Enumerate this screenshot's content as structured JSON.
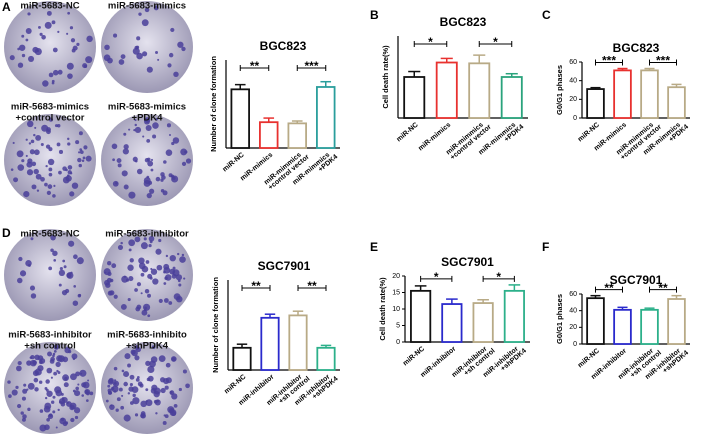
{
  "panels": [
    "A",
    "B",
    "C",
    "D",
    "E",
    "F"
  ],
  "photos": [
    {
      "labels": [
        "miR-5683-NC"
      ]
    },
    {
      "labels": [
        "miR-5683-mimics"
      ]
    },
    {
      "labels": [
        "miR-5683-mimics",
        "+control vector"
      ]
    },
    {
      "labels": [
        "miR-5683-mimics",
        "+PDK4"
      ]
    },
    {
      "labels": [
        "miR-5683-NC"
      ]
    },
    {
      "labels": [
        "miR-5683-inhibitor"
      ]
    },
    {
      "labels": [
        "miR-5683-inhibitor",
        "+sh control"
      ]
    },
    {
      "labels": [
        "miR-5683-inhibito",
        "+shPDK4"
      ]
    }
  ],
  "chart_data": [
    {
      "type": "bar",
      "title": "BGC823",
      "ylabel": "Number of clone formation",
      "categories": [
        [
          "miR-NC"
        ],
        [
          "miR-mimics"
        ],
        [
          "miR-mimmics",
          "+control vector"
        ],
        [
          "miR-mimmics",
          "+PDK4"
        ]
      ],
      "values": [
        100,
        44,
        42,
        104
      ],
      "errors": [
        8,
        7,
        4,
        9
      ],
      "colors": [
        "#111111",
        "#e8312f",
        "#b8aa86",
        "#2a9e9c"
      ],
      "ylim": [
        0,
        150
      ],
      "annotations": [
        "**",
        "***"
      ]
    },
    {
      "type": "bar",
      "title": "BGC823",
      "ylabel": "Cell death rate(%)",
      "categories": [
        [
          "miR-NC"
        ],
        [
          "miR-mimics"
        ],
        [
          "miR-mimmics",
          "+control vector"
        ],
        [
          "miR-mimmics",
          "+PDK4"
        ]
      ],
      "values": [
        15,
        20.3,
        20,
        15
      ],
      "errors": [
        2,
        1.5,
        3,
        1.2
      ],
      "colors": [
        "#111111",
        "#e8312f",
        "#b8aa86",
        "#2aa37c"
      ],
      "ylim": [
        0,
        30
      ],
      "annotations": [
        "*",
        "*"
      ]
    },
    {
      "type": "bar",
      "title": "BGC823",
      "ylabel": "G0/G1 phases",
      "categories": [
        [
          "miR-NC"
        ],
        [
          "miR-mimics"
        ],
        [
          "miR-mimmics",
          "+control vector"
        ],
        [
          "miR-mimmics",
          "+PDK4"
        ]
      ],
      "values": [
        31,
        51,
        51,
        33
      ],
      "errors": [
        1.5,
        2,
        2,
        3
      ],
      "colors": [
        "#111111",
        "#e8312f",
        "#b8aa86",
        "#b8aa86"
      ],
      "ylim": [
        0,
        60
      ],
      "yticks": [
        0,
        20,
        40,
        60
      ],
      "annotations": [
        "***",
        "***"
      ]
    },
    {
      "type": "bar",
      "title": "SGC7901",
      "ylabel": "Number of clone formation",
      "categories": [
        [
          "miR-NC"
        ],
        [
          "miR-inhibitor"
        ],
        [
          "miR-inhibitor",
          "+sh control"
        ],
        [
          "miR-inhibitor",
          "+shPDK4"
        ]
      ],
      "values": [
        37,
        87,
        91,
        37
      ],
      "errors": [
        6,
        6,
        7,
        4
      ],
      "colors": [
        "#111111",
        "#2a2acc",
        "#b8aa86",
        "#2cb08a"
      ],
      "ylim": [
        0,
        150
      ],
      "annotations": [
        "**",
        "**"
      ]
    },
    {
      "type": "bar",
      "title": "SGC7901",
      "ylabel": "Cell death rate(%)",
      "categories": [
        [
          "miR-NC"
        ],
        [
          "miR-inhibitor"
        ],
        [
          "miR-inhibitor",
          "+sh control"
        ],
        [
          "miR-inhibitor",
          "+shPDK4"
        ]
      ],
      "values": [
        15.5,
        11.5,
        11.8,
        15.5
      ],
      "errors": [
        1.5,
        1.5,
        1,
        1.8
      ],
      "colors": [
        "#111111",
        "#2a2acc",
        "#b8aa86",
        "#2cb08a"
      ],
      "ylim": [
        0,
        20
      ],
      "yticks": [
        0,
        5,
        10,
        15,
        20
      ],
      "annotations": [
        "*",
        "*"
      ]
    },
    {
      "type": "bar",
      "title": "SGC7901",
      "ylabel": "G0/G1 phases",
      "categories": [
        [
          "miR-NC"
        ],
        [
          "miR-inhibitor"
        ],
        [
          "miR-inhibitor",
          "+sh control"
        ],
        [
          "miR-inhibitor",
          "+shPDK4"
        ]
      ],
      "values": [
        55,
        41,
        41,
        54
      ],
      "errors": [
        3,
        3,
        2,
        4
      ],
      "colors": [
        "#111111",
        "#2a2acc",
        "#2cb08a",
        "#b8aa86"
      ],
      "ylim": [
        0,
        60
      ],
      "yticks": [
        0,
        20,
        40,
        60
      ],
      "annotations": [
        "**",
        "**"
      ]
    }
  ]
}
